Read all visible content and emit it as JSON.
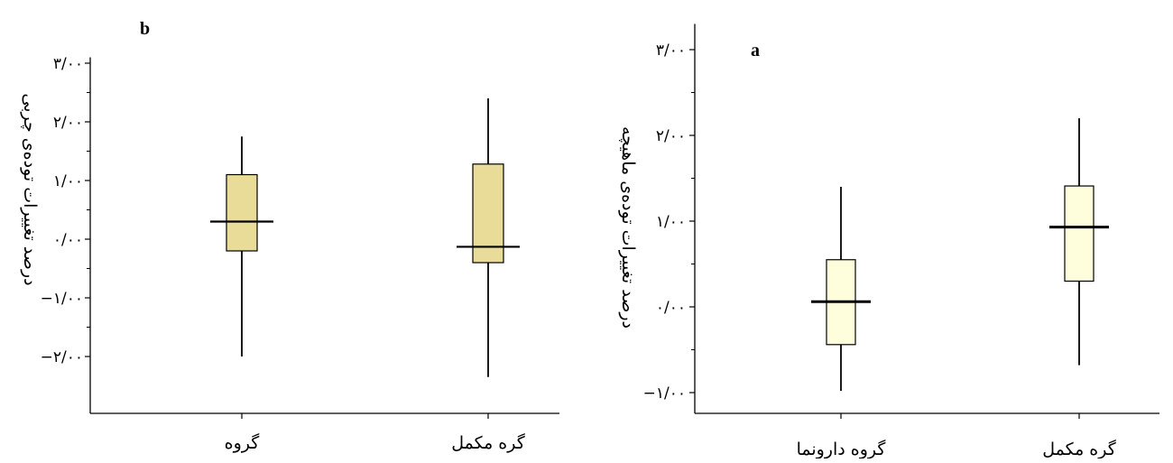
{
  "colors": {
    "box_fill_b": "#e8dc98",
    "box_fill_a": "#fefedd",
    "stroke": "#000000"
  },
  "chart_data": [
    {
      "type": "box",
      "panel_label": "b",
      "ylabel": "درصد تغییرات توده‌ی چربی",
      "xlabel": "",
      "categories": [
        "گروه",
        "گره مکمل"
      ],
      "ylim": [
        -2.3,
        3.1
      ],
      "yticks": [
        -2,
        -1,
        0,
        1,
        2,
        3
      ],
      "ytick_labels": [
        "−۲/۰۰",
        "−۱/۰۰",
        "۰/۰۰",
        "۱/۰۰",
        "۲/۰۰",
        "۳/۰۰"
      ],
      "boxes": [
        {
          "category": "گروه",
          "min": -2.0,
          "q1": -0.2,
          "median": 0.3,
          "q3": 1.1,
          "max": 1.75
        },
        {
          "category": "گره مکمل",
          "min": -2.35,
          "q1": -0.4,
          "median": -0.13,
          "q3": 1.28,
          "max": 2.4
        }
      ],
      "grid": false,
      "legend": "none"
    },
    {
      "type": "box",
      "panel_label": "a",
      "ylabel": "درصد تغییرات توده‌ی ماهیچه",
      "xlabel": "",
      "categories": [
        "گروه دارونما",
        "گره مکمل"
      ],
      "ylim": [
        -1.25,
        3.3
      ],
      "yticks": [
        -1,
        0,
        1,
        2,
        3
      ],
      "ytick_labels": [
        "−۱/۰۰",
        "۰/۰۰",
        "۱/۰۰",
        "۲/۰۰",
        "۳/۰۰"
      ],
      "boxes": [
        {
          "category": "گروه دارونما",
          "min": -0.98,
          "q1": -0.44,
          "median": 0.06,
          "q3": 0.55,
          "max": 1.4
        },
        {
          "category": "گره مکمل",
          "min": -0.68,
          "q1": 0.3,
          "median": 0.93,
          "q3": 1.41,
          "max": 2.2
        }
      ],
      "grid": false,
      "legend": "none"
    }
  ]
}
